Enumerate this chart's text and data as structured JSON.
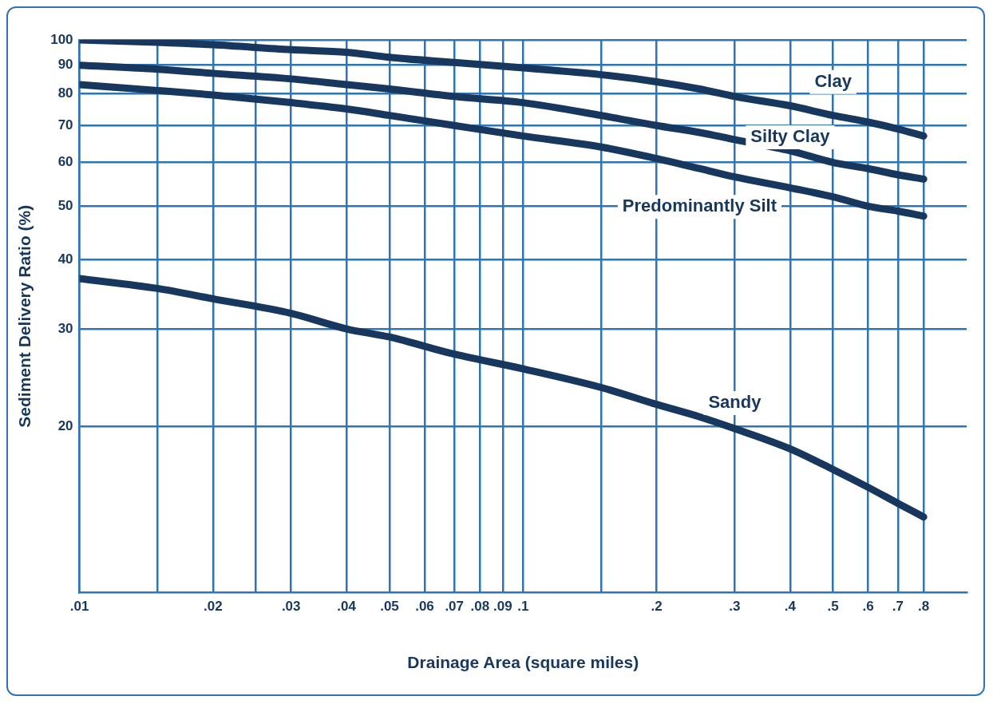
{
  "chart_data": {
    "type": "line",
    "xlabel": "Drainage Area (square miles)",
    "ylabel": "Sediment Delivery Ratio (%)",
    "x": [
      0.01,
      0.015,
      0.02,
      0.03,
      0.04,
      0.05,
      0.07,
      0.1,
      0.15,
      0.2,
      0.25,
      0.3,
      0.4,
      0.5,
      0.6,
      0.7,
      0.8
    ],
    "series": [
      {
        "name": "Clay",
        "color": "#17375e",
        "values": [
          100,
          99,
          98,
          96,
          95,
          93,
          91,
          89,
          86.5,
          84,
          81.5,
          79,
          76,
          73,
          71,
          69,
          67
        ]
      },
      {
        "name": "Silty Clay",
        "color": "#17375e",
        "values": [
          90,
          88.5,
          87,
          85,
          83,
          81.5,
          79,
          77,
          73,
          70,
          68,
          66,
          63,
          60,
          58.5,
          57,
          56
        ]
      },
      {
        "name": "Predominantly Silt",
        "color": "#17375e",
        "values": [
          83,
          81,
          79.5,
          77,
          75,
          73,
          70,
          67,
          64,
          61,
          58.5,
          56.5,
          54,
          52,
          50,
          49,
          48
        ]
      },
      {
        "name": "Sandy",
        "color": "#17375e",
        "values": [
          37,
          35.5,
          34,
          32,
          30,
          29,
          27,
          25.4,
          23.5,
          21.9,
          20.8,
          19.8,
          18.2,
          16.7,
          15.5,
          14.5,
          13.7
        ]
      }
    ],
    "log": "xy",
    "xlim": [
      0.01,
      1
    ],
    "ylim": [
      10,
      100
    ],
    "xticks": [
      {
        "value": 0.01,
        "label": ".01"
      },
      {
        "value": 0.015,
        "label": null
      },
      {
        "value": 0.02,
        "label": ".02"
      },
      {
        "value": 0.025,
        "label": null
      },
      {
        "value": 0.03,
        "label": ".03"
      },
      {
        "value": 0.04,
        "label": ".04"
      },
      {
        "value": 0.05,
        "label": ".05"
      },
      {
        "value": 0.06,
        "label": ".06"
      },
      {
        "value": 0.07,
        "label": ".07"
      },
      {
        "value": 0.08,
        "label": ".08"
      },
      {
        "value": 0.09,
        "label": ".09"
      },
      {
        "value": 0.1,
        "label": ".1"
      },
      {
        "value": 0.15,
        "label": null
      },
      {
        "value": 0.2,
        "label": ".2"
      },
      {
        "value": 0.3,
        "label": ".3"
      },
      {
        "value": 0.4,
        "label": ".4"
      },
      {
        "value": 0.5,
        "label": ".5"
      },
      {
        "value": 0.6,
        "label": ".6"
      },
      {
        "value": 0.7,
        "label": ".7"
      },
      {
        "value": 0.8,
        "label": ".8"
      }
    ],
    "yticks": [
      20,
      30,
      40,
      50,
      60,
      70,
      80,
      90,
      100
    ],
    "grid": true,
    "legend": false,
    "marker": "none",
    "line_style": "solid"
  }
}
